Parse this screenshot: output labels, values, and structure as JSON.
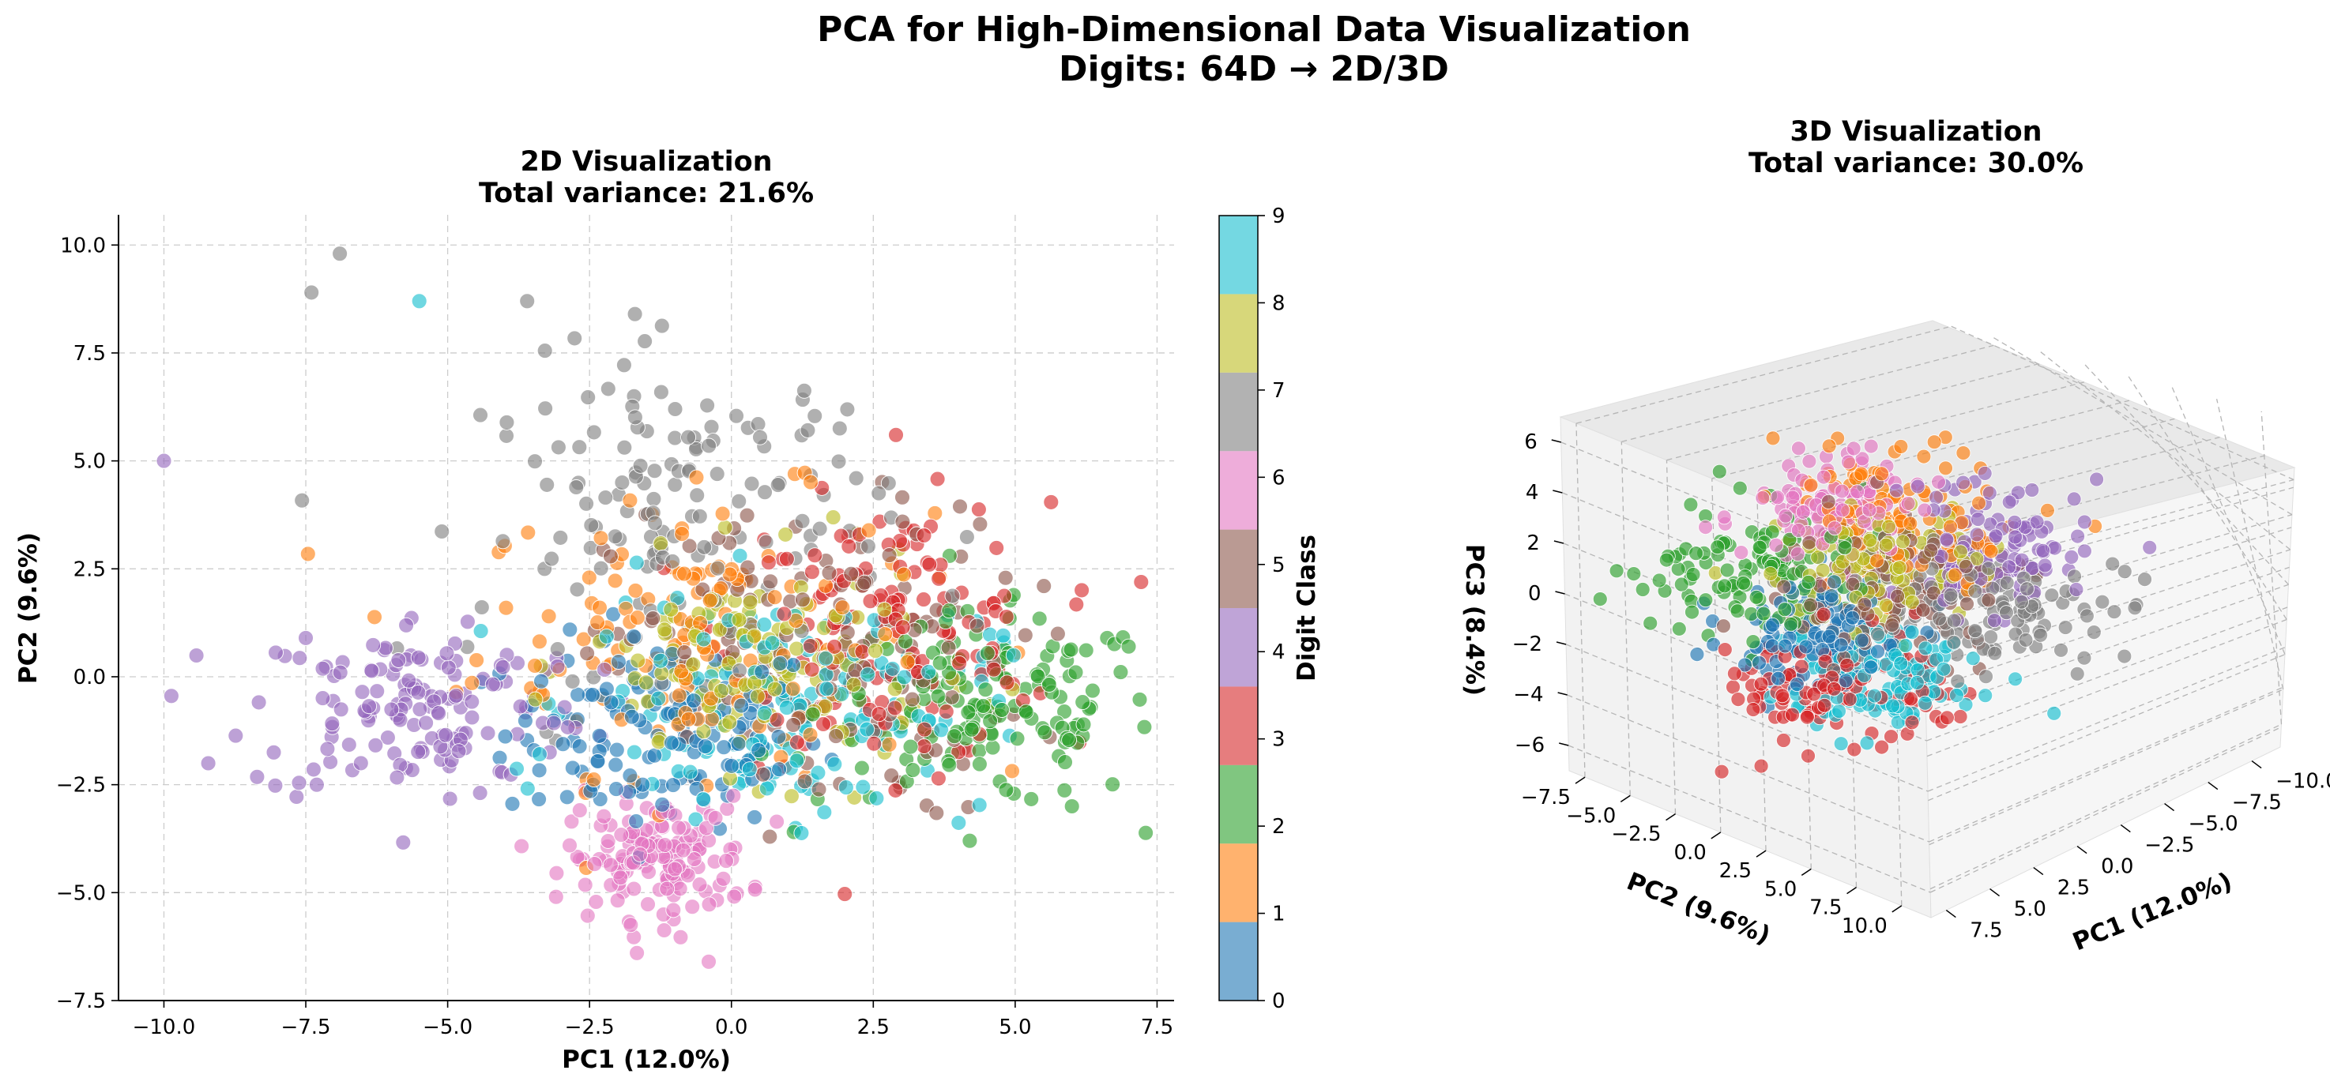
{
  "figure": {
    "title_line1": "PCA for High-Dimensional Data Visualization",
    "title_line2": "Digits: 64D → 2D/3D"
  },
  "colors": {
    "classes": [
      "#1f77b4",
      "#ff7f0e",
      "#2ca02c",
      "#d62728",
      "#9467bd",
      "#8c564b",
      "#e377c2",
      "#7f7f7f",
      "#bcbd22",
      "#17becf"
    ],
    "grid": "#cccccc",
    "pane": "#f2f2f2"
  },
  "chart_data": [
    {
      "type": "scatter",
      "title_line1": "2D Visualization",
      "title_line2": "Total variance: 21.6%",
      "xlabel": "PC1 (12.0%)",
      "ylabel": "PC2 (9.6%)",
      "xlim": [
        -10.8,
        7.8
      ],
      "ylim": [
        -7.5,
        10.7
      ],
      "xticks": [
        "−10.0",
        "−7.5",
        "−5.0",
        "−2.5",
        "0.0",
        "2.5",
        "5.0",
        "7.5"
      ],
      "yticks": [
        "−7.5",
        "−5.0",
        "−2.5",
        "0.0",
        "2.5",
        "5.0",
        "7.5",
        "10.0"
      ],
      "grid": true,
      "colorbar": {
        "label": "Digit Class",
        "ticks": [
          "0",
          "1",
          "2",
          "3",
          "4",
          "5",
          "6",
          "7",
          "8",
          "9"
        ]
      },
      "class_clusters": [
        {
          "class": "0",
          "center": [
            -1.2,
            -1.3
          ],
          "spread": [
            1.4,
            1.1
          ]
        },
        {
          "class": "1",
          "center": [
            -0.5,
            1.0
          ],
          "spread": [
            2.0,
            1.6
          ]
        },
        {
          "class": "2",
          "center": [
            4.5,
            -0.8
          ],
          "spread": [
            1.5,
            1.1
          ]
        },
        {
          "class": "3",
          "center": [
            2.8,
            1.0
          ],
          "spread": [
            1.4,
            1.5
          ]
        },
        {
          "class": "4",
          "center": [
            -5.5,
            -0.7
          ],
          "spread": [
            1.5,
            1.1
          ]
        },
        {
          "class": "5",
          "center": [
            1.5,
            0.3
          ],
          "spread": [
            1.8,
            1.8
          ]
        },
        {
          "class": "6",
          "center": [
            -1.3,
            -4.2
          ],
          "spread": [
            0.8,
            0.7
          ]
        },
        {
          "class": "7",
          "center": [
            -0.8,
            3.8
          ],
          "spread": [
            1.8,
            1.8
          ]
        },
        {
          "class": "8",
          "center": [
            0.5,
            0.2
          ],
          "spread": [
            1.5,
            1.2
          ]
        },
        {
          "class": "9",
          "center": [
            1.0,
            -0.6
          ],
          "spread": [
            1.8,
            1.3
          ]
        }
      ],
      "notable_points": [
        {
          "x": -10.0,
          "y": 5.0,
          "class": "4"
        },
        {
          "x": -6.9,
          "y": 9.8,
          "class": "7"
        },
        {
          "x": -7.4,
          "y": 8.9,
          "class": "7"
        },
        {
          "x": -5.5,
          "y": 8.7,
          "class": "9"
        },
        {
          "x": -1.7,
          "y": 8.4,
          "class": "7"
        },
        {
          "x": -3.6,
          "y": 8.7,
          "class": "7"
        },
        {
          "x": -0.4,
          "y": -6.6,
          "class": "6"
        },
        {
          "x": 7.0,
          "y": 0.7,
          "class": "2"
        },
        {
          "x": 6.0,
          "y": -3.0,
          "class": "2"
        },
        {
          "x": 4.2,
          "y": -3.8,
          "class": "2"
        },
        {
          "x": 2.9,
          "y": 5.6,
          "class": "3"
        }
      ]
    },
    {
      "type": "scatter3d",
      "title_line1": "3D Visualization",
      "title_line2": "Total variance: 30.0%",
      "xlabel": "PC1 (12.0%)",
      "ylabel": "PC2 (9.6%)",
      "zlabel": "PC3 (8.4%)",
      "xticks": [
        "−10.0",
        "−7.5",
        "−5.0",
        "−2.5",
        "0.0",
        "2.5",
        "5.0",
        "7.5"
      ],
      "yticks": [
        "−7.5",
        "−5.0",
        "−2.5",
        "0.0",
        "2.5",
        "5.0",
        "7.5",
        "10.0"
      ],
      "zticks": [
        "−6",
        "−4",
        "−2",
        "0",
        "2",
        "4",
        "6"
      ],
      "grid": true,
      "view": {
        "elev": 20,
        "azim": 45
      }
    }
  ]
}
